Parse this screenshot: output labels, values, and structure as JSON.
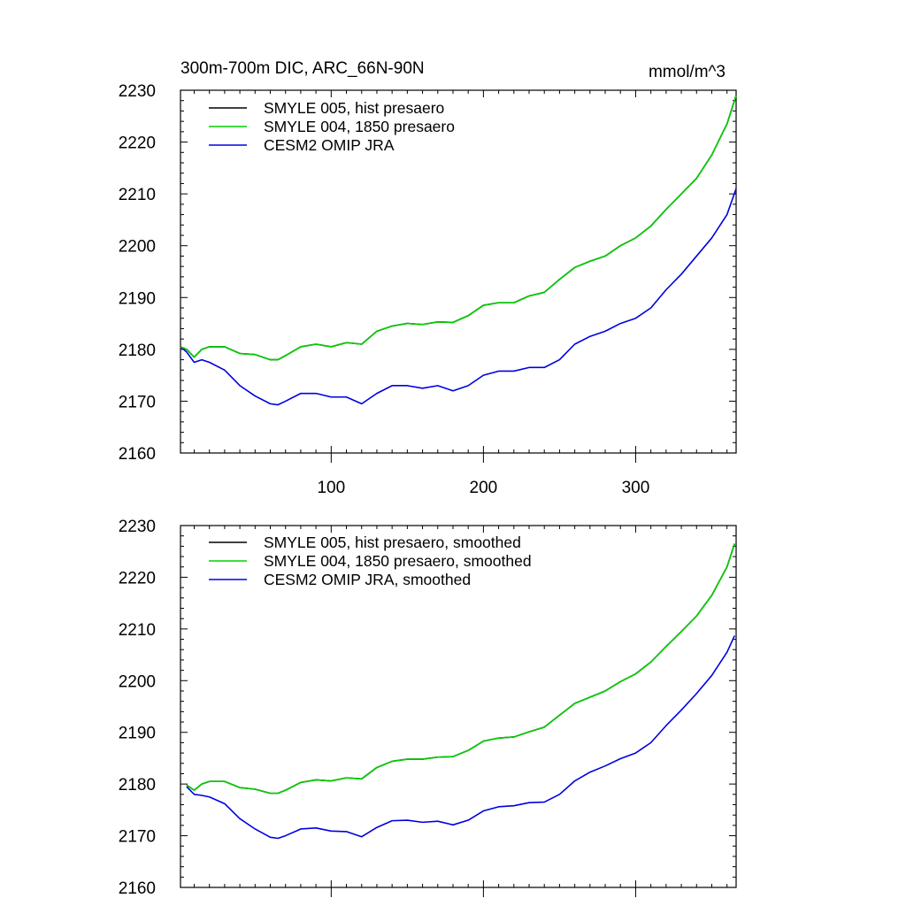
{
  "chart_data": [
    {
      "type": "line",
      "title": "300m-700m DIC, ARC_66N-90N",
      "units": "mmol/m^3",
      "xlim": [
        1,
        366
      ],
      "ylim": [
        2160,
        2230
      ],
      "xticks": [
        100,
        200,
        300
      ],
      "yticks": [
        2160,
        2170,
        2180,
        2190,
        2200,
        2210,
        2220,
        2230
      ],
      "show_x_tick_labels": true,
      "legend_position": "top-left",
      "series": [
        {
          "name": "SMYLE 005, hist presaero",
          "color": "#000000",
          "x": [
            1,
            5,
            10,
            15,
            20,
            30,
            40,
            50,
            60,
            65,
            70,
            80,
            90,
            100,
            110,
            120,
            130,
            140,
            150,
            160,
            170,
            180,
            190,
            200,
            210,
            220,
            230,
            240,
            250,
            260,
            270,
            280,
            290,
            300,
            310,
            320,
            330,
            340,
            350,
            360,
            366
          ],
          "values": [
            2180.5,
            2180.0,
            2178.5,
            2180.0,
            2180.5,
            2180.5,
            2179.2,
            2179.0,
            2178.0,
            2178.0,
            2178.8,
            2180.5,
            2181.0,
            2180.5,
            2181.3,
            2181.0,
            2183.5,
            2184.5,
            2185.0,
            2184.8,
            2185.3,
            2185.2,
            2186.5,
            2188.5,
            2189.0,
            2189.0,
            2190.3,
            2191.0,
            2193.5,
            2195.8,
            2197.0,
            2198.0,
            2200.0,
            2201.5,
            2203.8,
            2207.0,
            2210.0,
            2213.0,
            2217.5,
            2223.5,
            2229.0
          ]
        },
        {
          "name": "SMYLE 004, 1850 presaero",
          "color": "#00d000",
          "x": [
            1,
            5,
            10,
            15,
            20,
            30,
            40,
            50,
            60,
            65,
            70,
            80,
            90,
            100,
            110,
            120,
            130,
            140,
            150,
            160,
            170,
            180,
            190,
            200,
            210,
            220,
            230,
            240,
            250,
            260,
            270,
            280,
            290,
            300,
            310,
            320,
            330,
            340,
            350,
            360,
            366
          ],
          "values": [
            2180.5,
            2180.0,
            2178.5,
            2180.0,
            2180.5,
            2180.5,
            2179.2,
            2179.0,
            2178.0,
            2178.0,
            2178.8,
            2180.5,
            2181.0,
            2180.5,
            2181.3,
            2181.0,
            2183.5,
            2184.5,
            2185.0,
            2184.8,
            2185.3,
            2185.2,
            2186.5,
            2188.5,
            2189.0,
            2189.0,
            2190.3,
            2191.0,
            2193.5,
            2195.8,
            2197.0,
            2198.0,
            2200.0,
            2201.5,
            2203.8,
            2207.0,
            2210.0,
            2213.0,
            2217.5,
            2223.5,
            2229.0
          ]
        },
        {
          "name": "CESM2 OMIP JRA",
          "color": "#0000e0",
          "x": [
            1,
            5,
            10,
            15,
            20,
            30,
            40,
            50,
            60,
            65,
            70,
            80,
            90,
            100,
            110,
            120,
            130,
            140,
            150,
            160,
            170,
            180,
            190,
            200,
            210,
            220,
            230,
            240,
            250,
            260,
            270,
            280,
            290,
            300,
            310,
            320,
            330,
            340,
            350,
            360,
            366
          ],
          "values": [
            2180.5,
            2179.5,
            2177.5,
            2178.0,
            2177.5,
            2176.0,
            2173.0,
            2171.0,
            2169.5,
            2169.3,
            2170.0,
            2171.5,
            2171.5,
            2170.8,
            2170.8,
            2169.5,
            2171.5,
            2173.0,
            2173.0,
            2172.5,
            2173.0,
            2172.0,
            2173.0,
            2175.0,
            2175.8,
            2175.8,
            2176.5,
            2176.5,
            2178.0,
            2181.0,
            2182.5,
            2183.5,
            2185.0,
            2186.0,
            2188.0,
            2191.5,
            2194.5,
            2198.0,
            2201.5,
            2206.0,
            2211.0
          ]
        }
      ]
    },
    {
      "type": "line",
      "title": "",
      "units": "",
      "xlim": [
        1,
        366
      ],
      "ylim": [
        2160,
        2230
      ],
      "xticks": [
        100,
        200,
        300
      ],
      "yticks": [
        2160,
        2170,
        2180,
        2190,
        2200,
        2210,
        2220,
        2230
      ],
      "show_x_tick_labels": false,
      "legend_position": "top-left",
      "series": [
        {
          "name": "SMYLE 005, hist presaero, smoothed",
          "color": "#000000",
          "x": [
            5,
            10,
            15,
            20,
            30,
            40,
            50,
            60,
            65,
            70,
            80,
            90,
            100,
            110,
            120,
            130,
            140,
            150,
            160,
            170,
            180,
            190,
            200,
            210,
            220,
            230,
            240,
            250,
            260,
            270,
            280,
            290,
            300,
            310,
            320,
            330,
            340,
            350,
            360,
            365
          ],
          "values": [
            2179.8,
            2178.8,
            2180.0,
            2180.5,
            2180.5,
            2179.3,
            2179.0,
            2178.2,
            2178.2,
            2178.8,
            2180.3,
            2180.8,
            2180.6,
            2181.2,
            2181.0,
            2183.2,
            2184.4,
            2184.8,
            2184.8,
            2185.2,
            2185.3,
            2186.5,
            2188.3,
            2188.9,
            2189.1,
            2190.1,
            2191.0,
            2193.3,
            2195.6,
            2196.8,
            2198.0,
            2199.8,
            2201.3,
            2203.6,
            2206.6,
            2209.5,
            2212.5,
            2216.5,
            2222.0,
            2226.5
          ]
        },
        {
          "name": "SMYLE 004, 1850 presaero, smoothed",
          "color": "#00d000",
          "x": [
            5,
            10,
            15,
            20,
            30,
            40,
            50,
            60,
            65,
            70,
            80,
            90,
            100,
            110,
            120,
            130,
            140,
            150,
            160,
            170,
            180,
            190,
            200,
            210,
            220,
            230,
            240,
            250,
            260,
            270,
            280,
            290,
            300,
            310,
            320,
            330,
            340,
            350,
            360,
            365
          ],
          "values": [
            2179.8,
            2178.8,
            2180.0,
            2180.5,
            2180.5,
            2179.3,
            2179.0,
            2178.2,
            2178.2,
            2178.8,
            2180.3,
            2180.8,
            2180.6,
            2181.2,
            2181.0,
            2183.2,
            2184.4,
            2184.8,
            2184.8,
            2185.2,
            2185.3,
            2186.5,
            2188.3,
            2188.9,
            2189.1,
            2190.1,
            2191.0,
            2193.3,
            2195.6,
            2196.8,
            2198.0,
            2199.8,
            2201.3,
            2203.6,
            2206.6,
            2209.5,
            2212.5,
            2216.5,
            2222.0,
            2226.5
          ]
        },
        {
          "name": "CESM2 OMIP JRA, smoothed",
          "color": "#0000e0",
          "x": [
            5,
            10,
            15,
            20,
            30,
            40,
            50,
            60,
            65,
            70,
            80,
            90,
            100,
            110,
            120,
            130,
            140,
            150,
            160,
            170,
            180,
            190,
            200,
            210,
            220,
            230,
            240,
            250,
            260,
            270,
            280,
            290,
            300,
            310,
            320,
            330,
            340,
            350,
            360,
            365
          ],
          "values": [
            2179.5,
            2178.0,
            2177.8,
            2177.5,
            2176.2,
            2173.3,
            2171.3,
            2169.7,
            2169.5,
            2170.0,
            2171.3,
            2171.5,
            2170.9,
            2170.8,
            2169.8,
            2171.6,
            2172.9,
            2173.0,
            2172.6,
            2172.8,
            2172.1,
            2173.0,
            2174.8,
            2175.6,
            2175.8,
            2176.4,
            2176.5,
            2178.0,
            2180.6,
            2182.3,
            2183.5,
            2184.9,
            2186.0,
            2188.0,
            2191.3,
            2194.3,
            2197.5,
            2201.0,
            2205.5,
            2208.7
          ]
        }
      ]
    }
  ]
}
